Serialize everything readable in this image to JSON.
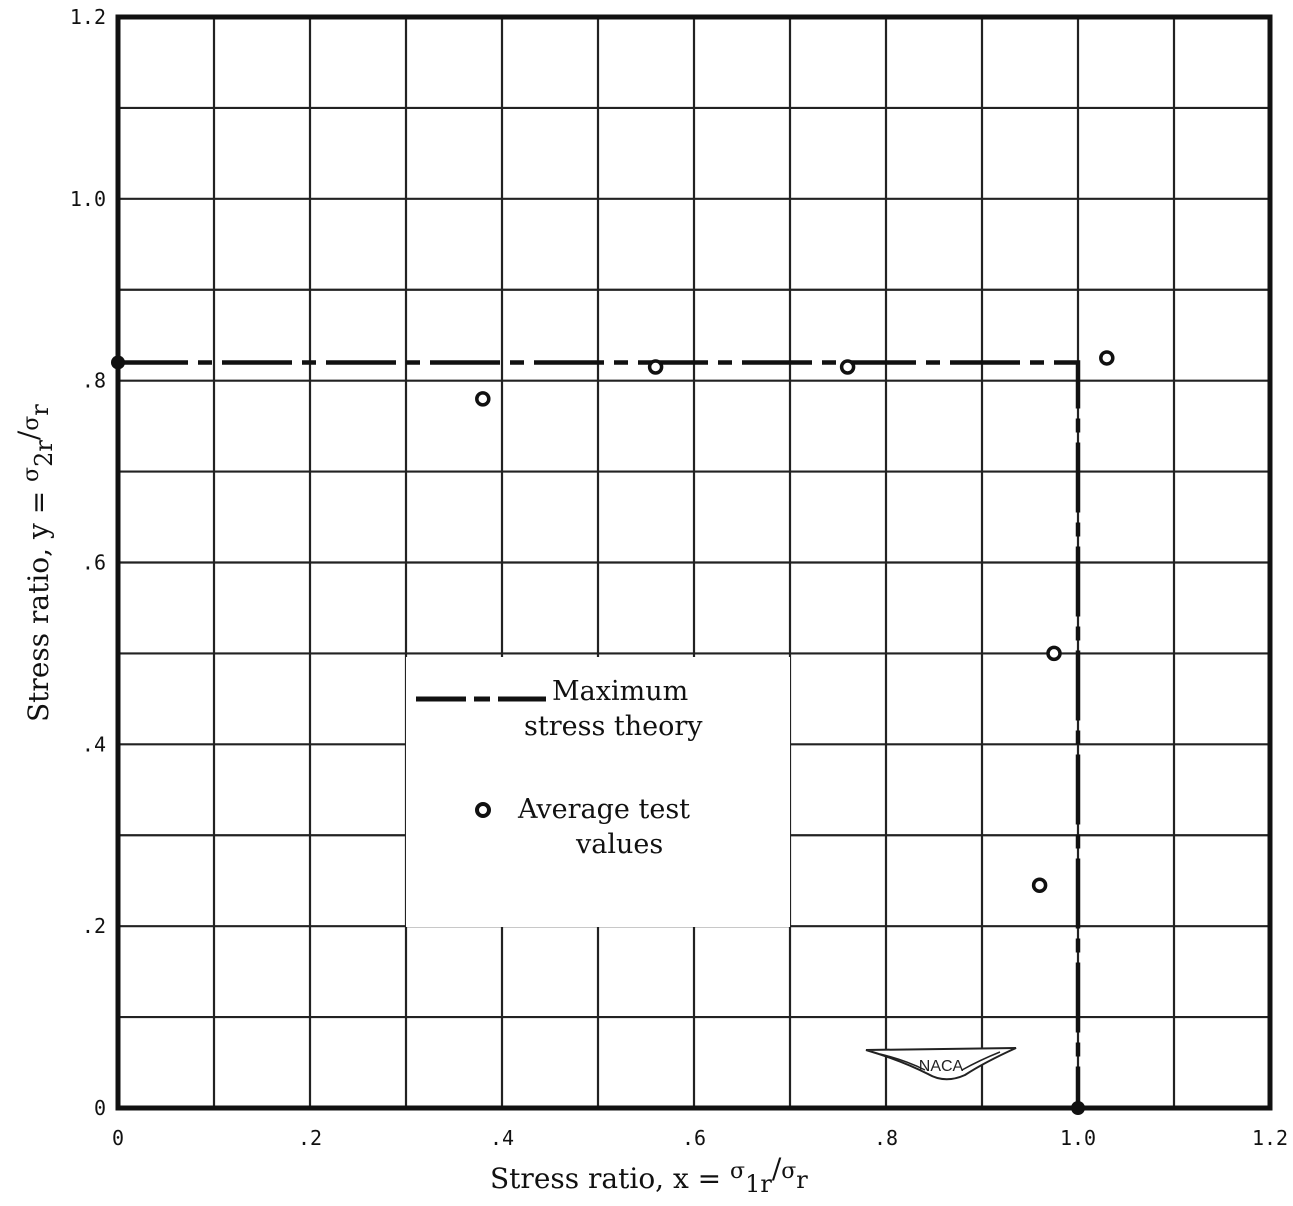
{
  "chart_data": {
    "type": "scatter",
    "title": "",
    "xlabel": {
      "prefix": "Stress ratio,  x = ",
      "num": "σ",
      "num_sub": "1r",
      "den": "σ",
      "den_sub": "r"
    },
    "ylabel": {
      "prefix": "Stress ratio,  y = ",
      "num": "σ",
      "num_sub": "2r",
      "den": "σ",
      "den_sub": "r"
    },
    "xlim": [
      0,
      1.2
    ],
    "ylim": [
      0,
      1.2
    ],
    "grid": true,
    "x_ticks": [
      {
        "value": 0,
        "label": "0"
      },
      {
        "value": 0.2,
        "label": ".2"
      },
      {
        "value": 0.4,
        "label": ".4"
      },
      {
        "value": 0.6,
        "label": ".6"
      },
      {
        "value": 0.8,
        "label": ".8"
      },
      {
        "value": 1.0,
        "label": "1.0"
      },
      {
        "value": 1.2,
        "label": "1.2"
      }
    ],
    "y_ticks": [
      {
        "value": 0,
        "label": "0"
      },
      {
        "value": 0.2,
        "label": ".2"
      },
      {
        "value": 0.4,
        "label": ".4"
      },
      {
        "value": 0.6,
        "label": ".6"
      },
      {
        "value": 0.8,
        "label": ".8"
      },
      {
        "value": 1.0,
        "label": "1.0"
      },
      {
        "value": 1.2,
        "label": "1.2"
      }
    ],
    "series": [
      {
        "name": "Maximum stress theory",
        "type": "line",
        "style": "dash-dot",
        "points": [
          [
            0,
            0.82
          ],
          [
            1.0,
            0.82
          ],
          [
            1.0,
            0
          ]
        ]
      },
      {
        "name": "Average test values",
        "type": "scatter",
        "marker": "open-circle",
        "points": [
          [
            0.38,
            0.78
          ],
          [
            0.56,
            0.815
          ],
          [
            0.76,
            0.815
          ],
          [
            1.03,
            0.825
          ],
          [
            0.975,
            0.5
          ],
          [
            0.96,
            0.245
          ]
        ]
      }
    ],
    "legend": {
      "placement": "center-left",
      "entries": [
        {
          "line1": "Maximum",
          "line2": "stress theory"
        },
        {
          "line1": "Average test",
          "line2": "values"
        }
      ]
    },
    "logo": {
      "text": "NACA",
      "icon": "naca-wings-logo"
    }
  }
}
